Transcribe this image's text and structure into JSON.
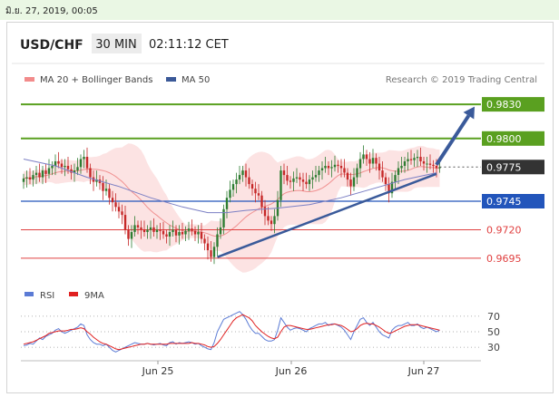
{
  "header": {
    "date_time": "มิ.ย. 27, 2019, 00:05"
  },
  "chart_info": {
    "symbol": "USD/CHF",
    "timeframe": "30 MIN",
    "time": "02:11:12 CET"
  },
  "legend": {
    "bollinger": {
      "label": "MA 20 + Bollinger Bands",
      "color": "#f28b8b"
    },
    "ma50": {
      "label": "MA 50",
      "color": "#3b5998"
    },
    "credit": "Research © 2019 Trading Central"
  },
  "rsi_legend": {
    "rsi": {
      "label": "RSI",
      "color": "#5b7bd5"
    },
    "ma9": {
      "label": "9MA",
      "color": "#e02020"
    }
  },
  "colors": {
    "resistance": "#5aa020",
    "pivot": "#2255bb",
    "support": "#e04040",
    "current": "#333333",
    "candle_up": "#2e7d32",
    "candle_down": "#c62828",
    "band_fill": "#fbd9d9",
    "trend": "#3a5a9a",
    "ma50": "#7b7fc4",
    "ma20": "#f09090"
  },
  "chart_data": {
    "type": "candlestick",
    "instrument": "USD/CHF",
    "timeframe": "30 MIN",
    "x_labels": [
      "Jun 25",
      "Jun 26",
      "Jun 27"
    ],
    "ylim": [
      0.9683,
      0.9842
    ],
    "current_price": "0.9775",
    "levels": [
      {
        "value": 0.983,
        "label": "0.9830",
        "type": "resistance"
      },
      {
        "value": 0.98,
        "label": "0.9800",
        "type": "resistance"
      },
      {
        "value": 0.9745,
        "label": "0.9745",
        "type": "pivot"
      },
      {
        "value": 0.972,
        "label": "0.9720",
        "type": "support"
      },
      {
        "value": 0.9695,
        "label": "0.9695",
        "type": "support"
      }
    ],
    "close_series": [
      0.9765,
      0.9766,
      0.9764,
      0.9768,
      0.977,
      0.9766,
      0.9772,
      0.9769,
      0.9774,
      0.9776,
      0.978,
      0.9778,
      0.9775,
      0.9776,
      0.9773,
      0.977,
      0.9772,
      0.9775,
      0.9782,
      0.9784,
      0.9774,
      0.9766,
      0.9762,
      0.9764,
      0.9761,
      0.9754,
      0.9756,
      0.9748,
      0.9744,
      0.974,
      0.9736,
      0.9733,
      0.972,
      0.9712,
      0.9718,
      0.9724,
      0.9722,
      0.972,
      0.9718,
      0.972,
      0.9722,
      0.9718,
      0.972,
      0.9719,
      0.9716,
      0.9714,
      0.9718,
      0.972,
      0.9715,
      0.9718,
      0.9716,
      0.9719,
      0.9721,
      0.9719,
      0.9716,
      0.9718,
      0.9712,
      0.9708,
      0.9702,
      0.9696,
      0.9705,
      0.9716,
      0.9722,
      0.9738,
      0.9748,
      0.9755,
      0.976,
      0.9764,
      0.9768,
      0.9772,
      0.9766,
      0.976,
      0.9756,
      0.9752,
      0.975,
      0.974,
      0.9732,
      0.9728,
      0.9725,
      0.9732,
      0.9746,
      0.9772,
      0.9768,
      0.9763,
      0.9762,
      0.9765,
      0.9766,
      0.9764,
      0.9762,
      0.976,
      0.9764,
      0.9766,
      0.9768,
      0.9772,
      0.9774,
      0.9776,
      0.9774,
      0.9775,
      0.9777,
      0.9776,
      0.9774,
      0.977,
      0.9764,
      0.9758,
      0.9766,
      0.9774,
      0.9782,
      0.9786,
      0.9782,
      0.9778,
      0.9783,
      0.9778,
      0.9772,
      0.9766,
      0.976,
      0.9752,
      0.9762,
      0.9768,
      0.9774,
      0.9776,
      0.978,
      0.9782,
      0.9781,
      0.9783,
      0.9784,
      0.978,
      0.9778,
      0.9778,
      0.9777,
      0.9776,
      0.9774,
      0.9775
    ],
    "ma50": {
      "x": [
        0,
        10,
        20,
        30,
        40,
        50,
        58,
        64,
        70,
        80,
        90,
        100,
        110,
        120,
        130
      ],
      "y": [
        0.9782,
        0.9776,
        0.9766,
        0.9758,
        0.9748,
        0.974,
        0.9735,
        0.9735,
        0.9737,
        0.9739,
        0.9742,
        0.9748,
        0.9756,
        0.9764,
        0.977
      ]
    },
    "trendline": {
      "start": [
        61,
        0.9696
      ],
      "end": [
        130,
        0.9769
      ]
    },
    "projection": {
      "start": [
        130,
        0.9777
      ],
      "end": [
        142,
        0.9828
      ]
    },
    "rsi": {
      "ylim": [
        22,
        78
      ],
      "ticks": [
        70,
        50,
        30
      ],
      "values": [
        32,
        33,
        35,
        34,
        38,
        42,
        40,
        44,
        46,
        48,
        52,
        54,
        50,
        48,
        50,
        52,
        54,
        56,
        60,
        58,
        46,
        40,
        36,
        34,
        34,
        32,
        34,
        30,
        26,
        24,
        26,
        28,
        30,
        32,
        34,
        36,
        35,
        34,
        34,
        35,
        34,
        33,
        34,
        35,
        33,
        32,
        36,
        37,
        34,
        36,
        35,
        36,
        37,
        36,
        34,
        35,
        32,
        30,
        28,
        27,
        36,
        50,
        58,
        66,
        68,
        70,
        72,
        74,
        76,
        72,
        66,
        58,
        52,
        48,
        48,
        44,
        40,
        38,
        38,
        40,
        52,
        68,
        62,
        56,
        52,
        54,
        55,
        54,
        52,
        50,
        54,
        56,
        58,
        60,
        60,
        62,
        58,
        60,
        60,
        58,
        56,
        52,
        46,
        40,
        50,
        58,
        66,
        68,
        62,
        58,
        62,
        56,
        50,
        46,
        44,
        42,
        52,
        56,
        58,
        58,
        60,
        62,
        58,
        58,
        60,
        56,
        54,
        56,
        54,
        52,
        50,
        52
      ],
      "ma9": [
        34,
        35,
        36,
        37,
        39,
        41,
        43,
        45,
        48,
        49,
        50,
        51,
        51,
        51,
        52,
        53,
        53,
        54,
        55,
        54,
        50,
        47,
        43,
        40,
        37,
        35,
        34,
        32,
        30,
        28,
        27,
        28,
        29,
        30,
        31,
        32,
        33,
        34,
        34,
        35,
        34,
        34,
        34,
        34,
        34,
        34,
        35,
        35,
        35,
        35,
        35,
        35,
        35,
        36,
        35,
        35,
        34,
        33,
        31,
        30,
        31,
        35,
        40,
        46,
        52,
        58,
        64,
        68,
        70,
        72,
        70,
        68,
        64,
        58,
        54,
        50,
        47,
        44,
        42,
        41,
        43,
        50,
        56,
        58,
        58,
        57,
        56,
        55,
        54,
        53,
        53,
        54,
        55,
        56,
        57,
        58,
        59,
        59,
        60,
        59,
        58,
        56,
        53,
        50,
        51,
        54,
        58,
        60,
        61,
        60,
        60,
        58,
        56,
        53,
        50,
        48,
        49,
        51,
        53,
        55,
        57,
        58,
        59,
        59,
        59,
        58,
        57,
        56,
        55,
        54,
        53,
        52
      ]
    }
  }
}
